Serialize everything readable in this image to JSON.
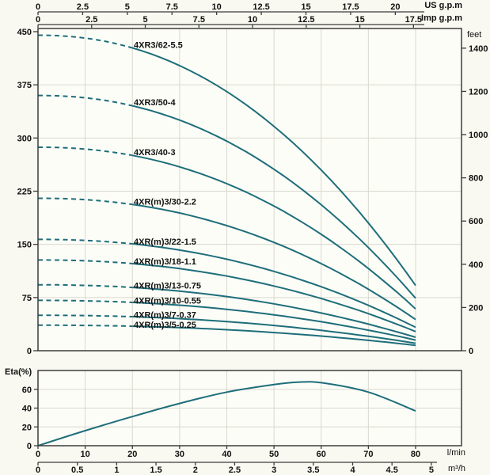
{
  "colors": {
    "curve": "#1e6e7b",
    "grid": "#d9d9d0",
    "axis": "#3c3c3c",
    "text": "#111111",
    "background": "#f9f9f1",
    "plot_background": "#fdfdf7"
  },
  "chart_data": [
    {
      "id": "head_capacity_curves",
      "type": "line",
      "x_unit": "l/min",
      "curve_flow_range_lmin": [
        0,
        80
      ],
      "dashed_below_lmin": 20,
      "grid_x_lmin": [
        10,
        20,
        30,
        40,
        50,
        60,
        70,
        80
      ],
      "axes": {
        "top_us_gpm": {
          "label": "US g.p.m",
          "ticks": [
            0,
            2.5,
            5,
            7.5,
            10,
            12.5,
            15,
            17.5,
            20
          ]
        },
        "top_imp_gpm": {
          "label": "Imp g.p.m",
          "ticks": [
            0,
            2.5,
            5,
            7.5,
            10,
            12.5,
            15,
            17.5
          ]
        },
        "left_head": {
          "range": [
            0,
            450
          ],
          "ticks": [
            450,
            375,
            300,
            225,
            150,
            75,
            0
          ]
        },
        "right_feet": {
          "label": "feet",
          "ticks": [
            1400,
            1200,
            1000,
            800,
            600,
            400,
            200,
            0
          ]
        }
      },
      "curve_model": {
        "exponent": 2.15
      },
      "series": [
        {
          "name": "4XR3/62-5.5",
          "shutoff_head": 445,
          "head_at_80lmin": 92
        },
        {
          "name": "4XR3/50-4",
          "shutoff_head": 360,
          "head_at_80lmin": 74
        },
        {
          "name": "4XR3/40-3",
          "shutoff_head": 287,
          "head_at_80lmin": 59
        },
        {
          "name": "4XR(m)3/30-2.2",
          "shutoff_head": 215,
          "head_at_80lmin": 44
        },
        {
          "name": "4XR(m)3/22-1.5",
          "shutoff_head": 157,
          "head_at_80lmin": 33
        },
        {
          "name": "4XR(m)3/18-1.1",
          "shutoff_head": 128,
          "head_at_80lmin": 27
        },
        {
          "name": "4XR(m)3/13-0.75",
          "shutoff_head": 93,
          "head_at_80lmin": 19
        },
        {
          "name": "4XR(m)3/10-0.55",
          "shutoff_head": 71,
          "head_at_80lmin": 15
        },
        {
          "name": "4XR(m)3/7-0.37",
          "shutoff_head": 50,
          "head_at_80lmin": 10.5
        },
        {
          "name": "4XR(m)3/5-0.25",
          "shutoff_head": 36,
          "head_at_80lmin": 7.5
        }
      ]
    },
    {
      "id": "efficiency_curve",
      "type": "line",
      "ylabel": "Eta(%)",
      "y_range": [
        0,
        80
      ],
      "y_ticks": [
        60,
        40,
        20,
        0
      ],
      "axes": {
        "bottom_lmin": {
          "label": "l/min",
          "ticks": [
            0,
            10,
            20,
            30,
            40,
            50,
            60,
            70,
            80
          ]
        },
        "bottom_m3h": {
          "label": "m³/h",
          "ticks": [
            0,
            0.5,
            1,
            1.5,
            2,
            2.5,
            3,
            3.5,
            4,
            4.5,
            5
          ]
        }
      },
      "points": [
        [
          0,
          0
        ],
        [
          10,
          16
        ],
        [
          20,
          31
        ],
        [
          30,
          45
        ],
        [
          40,
          57
        ],
        [
          50,
          65
        ],
        [
          55,
          67.5
        ],
        [
          60,
          67
        ],
        [
          70,
          57
        ],
        [
          80,
          37
        ]
      ]
    }
  ]
}
